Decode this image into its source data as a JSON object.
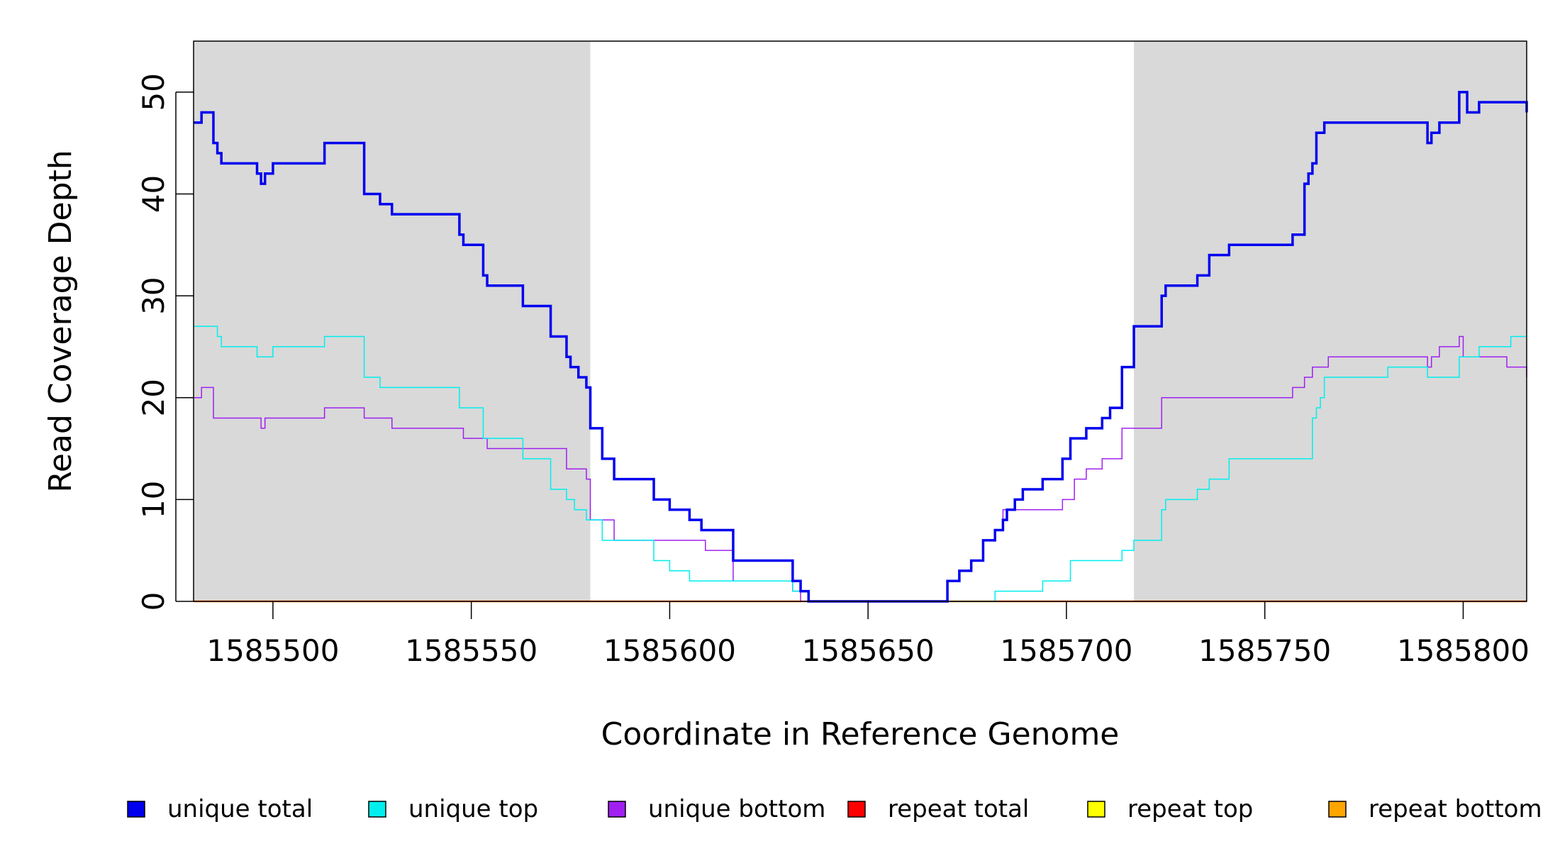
{
  "chart_data": {
    "type": "line",
    "title": "",
    "xlabel": "Coordinate in Reference Genome",
    "ylabel": "Read Coverage Depth",
    "xlim": [
      1585480,
      1585816
    ],
    "ylim": [
      0,
      55
    ],
    "x_ticks": [
      1585500,
      1585550,
      1585600,
      1585650,
      1585700,
      1585750,
      1585800
    ],
    "y_ticks": [
      0,
      10,
      20,
      30,
      40,
      50
    ],
    "x_tick_labels": [
      "1585500",
      "1585550",
      "1585600",
      "1585650",
      "1585700",
      "1585750",
      "1585800"
    ],
    "y_tick_labels": [
      "0",
      "10",
      "20",
      "30",
      "40",
      "50"
    ],
    "grid": false,
    "legend_position": "bottom",
    "shaded_regions": [
      {
        "x0": 1585480,
        "x1": 1585580,
        "color": "#d9d9d9"
      },
      {
        "x0": 1585717,
        "x1": 1585816,
        "color": "#d9d9d9"
      }
    ],
    "series": [
      {
        "name": "unique total",
        "color": "#0000ee",
        "width": 3.5,
        "x": [
          1585480,
          1585482,
          1585484,
          1585485,
          1585486,
          1585487,
          1585496,
          1585497,
          1585498,
          1585500,
          1585513,
          1585523,
          1585527,
          1585530,
          1585547,
          1585548,
          1585553,
          1585554,
          1585563,
          1585570,
          1585574,
          1585575,
          1585577,
          1585579,
          1585580,
          1585583,
          1585586,
          1585596,
          1585600,
          1585605,
          1585608,
          1585616,
          1585631,
          1585633,
          1585635,
          1585670,
          1585673,
          1585676,
          1585679,
          1585682,
          1585684,
          1585685,
          1585687,
          1585689,
          1585694,
          1585699,
          1585701,
          1585705,
          1585709,
          1585711,
          1585714,
          1585717,
          1585724,
          1585725,
          1585733,
          1585736,
          1585741,
          1585757,
          1585760,
          1585761,
          1585762,
          1585763,
          1585765,
          1585766,
          1585781,
          1585791,
          1585792,
          1585794,
          1585799,
          1585801,
          1585804,
          1585816
        ],
        "values": [
          47,
          48,
          48,
          45,
          44,
          43,
          42,
          41,
          42,
          43,
          45,
          40,
          39,
          38,
          36,
          35,
          32,
          31,
          29,
          26,
          24,
          23,
          22,
          21,
          17,
          14,
          12,
          10,
          9,
          8,
          7,
          4,
          2,
          1,
          0,
          2,
          3,
          4,
          6,
          7,
          8,
          9,
          10,
          11,
          12,
          14,
          16,
          17,
          18,
          19,
          23,
          27,
          30,
          31,
          32,
          34,
          35,
          36,
          41,
          42,
          43,
          46,
          47,
          47,
          47,
          45,
          46,
          47,
          50,
          48,
          49,
          48
        ]
      },
      {
        "name": "unique top",
        "color": "#00eeee",
        "width": 1.5,
        "x": [
          1585480,
          1585486,
          1585487,
          1585496,
          1585500,
          1585513,
          1585523,
          1585527,
          1585547,
          1585553,
          1585563,
          1585570,
          1585574,
          1585576,
          1585579,
          1585583,
          1585596,
          1585600,
          1585605,
          1585616,
          1585631,
          1585635,
          1585670,
          1585682,
          1585694,
          1585701,
          1585714,
          1585717,
          1585724,
          1585725,
          1585733,
          1585736,
          1585741,
          1585762,
          1585763,
          1585764,
          1585765,
          1585766,
          1585781,
          1585791,
          1585799,
          1585804,
          1585812,
          1585816
        ],
        "values": [
          27,
          26,
          25,
          24,
          25,
          26,
          22,
          21,
          19,
          16,
          14,
          11,
          10,
          9,
          8,
          6,
          4,
          3,
          2,
          2,
          1,
          0,
          0,
          1,
          2,
          4,
          5,
          6,
          9,
          10,
          11,
          12,
          14,
          18,
          19,
          20,
          22,
          22,
          23,
          22,
          24,
          25,
          26,
          26
        ]
      },
      {
        "name": "unique bottom",
        "color": "#a020f0",
        "width": 1.5,
        "x": [
          1585480,
          1585482,
          1585485,
          1585497,
          1585498,
          1585513,
          1585523,
          1585530,
          1585548,
          1585554,
          1585574,
          1585579,
          1585580,
          1585586,
          1585595,
          1585609,
          1585616,
          1585631,
          1585633,
          1585670,
          1585673,
          1585676,
          1585679,
          1585682,
          1585684,
          1585694,
          1585699,
          1585702,
          1585705,
          1585709,
          1585714,
          1585717,
          1585724,
          1585757,
          1585760,
          1585762,
          1585766,
          1585791,
          1585792,
          1585794,
          1585799,
          1585800,
          1585804,
          1585811,
          1585816
        ],
        "values": [
          20,
          21,
          18,
          17,
          18,
          19,
          18,
          17,
          16,
          15,
          13,
          12,
          8,
          6,
          6,
          5,
          2,
          1,
          0,
          2,
          3,
          4,
          6,
          7,
          9,
          9,
          10,
          12,
          13,
          14,
          17,
          17,
          20,
          21,
          22,
          23,
          24,
          23,
          24,
          25,
          26,
          24,
          24,
          23,
          22
        ]
      },
      {
        "name": "repeat total",
        "color": "#ff0000",
        "width": 2,
        "x": [
          1585480,
          1585816
        ],
        "values": [
          0,
          0
        ]
      },
      {
        "name": "repeat top",
        "color": "#ffff00",
        "width": 2,
        "x": [
          1585480,
          1585816
        ],
        "values": [
          0,
          0
        ]
      },
      {
        "name": "repeat bottom",
        "color": "#ffa500",
        "width": 2.5,
        "x": [
          1585480,
          1585816
        ],
        "values": [
          0,
          0
        ]
      }
    ]
  }
}
